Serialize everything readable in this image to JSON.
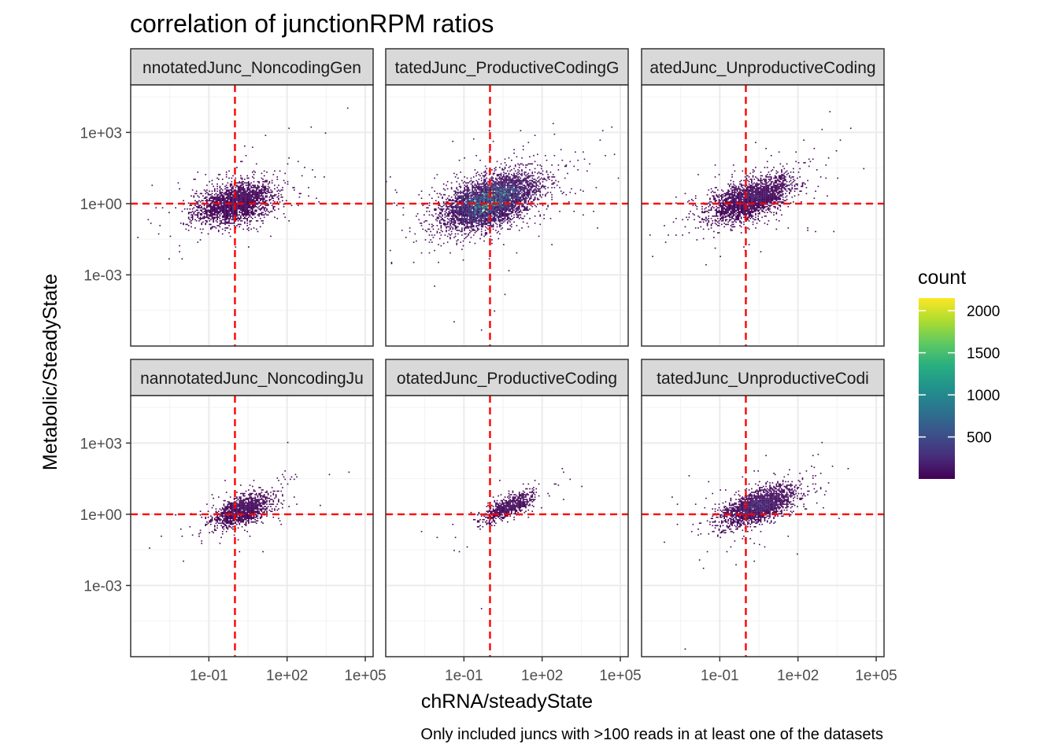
{
  "chart_data": {
    "type": "heatmap",
    "title": "correlation of junctionRPM ratios",
    "xlabel": "chRNA/steadyState",
    "ylabel": "Metabolic/SteadyState",
    "caption": "Only included juncs with >100 reads in at least one of the datasets",
    "x_scale": "log10",
    "y_scale": "log10",
    "xlim": [
      0.0001,
      200000.0
    ],
    "ylim": [
      1e-06,
      100000.0
    ],
    "x_ticks": [
      {
        "value": 0.1,
        "label": "1e-01"
      },
      {
        "value": 100,
        "label": "1e+02"
      },
      {
        "value": 100000,
        "label": "1e+05"
      }
    ],
    "y_ticks": [
      {
        "value": 0.001,
        "label": "1e-03"
      },
      {
        "value": 1,
        "label": "1e+00"
      },
      {
        "value": 1000,
        "label": "1e+03"
      }
    ],
    "reference_lines": {
      "x": 1,
      "y": 1,
      "color": "#ff0000",
      "style": "dashed"
    },
    "legend": {
      "title": "count",
      "position": "right",
      "colormap": "viridis",
      "range": [
        1,
        2150
      ],
      "ticks": [
        {
          "value": 500,
          "label": "500"
        },
        {
          "value": 1000,
          "label": "1000"
        },
        {
          "value": 1500,
          "label": "1500"
        },
        {
          "value": 2000,
          "label": "2000"
        }
      ]
    },
    "grid": true,
    "panels": [
      {
        "strip": "nnotatedJunc_NoncodingGen",
        "row": 0,
        "col": 0,
        "center": [
          1,
          1
        ],
        "spread": [
          0.7,
          0.42
        ],
        "rho": 0.35,
        "n": 2600,
        "peak_count": 430,
        "seed": 11,
        "outliers": [
          [
            20000,
            11000
          ],
          [
            200000,
            9000
          ],
          [
            800,
            1600
          ],
          [
            3000,
            900
          ],
          [
            0.02,
            0.1
          ],
          [
            0.003,
            0.005
          ]
        ]
      },
      {
        "strip": "tatedJunc_ProductiveCodingG",
        "row": 0,
        "col": 1,
        "center": [
          1,
          1.2
        ],
        "spread": [
          0.85,
          0.55
        ],
        "rho": 0.5,
        "n": 5600,
        "peak_count": 2150,
        "seed": 23,
        "outliers": [
          [
            50000,
            1600
          ],
          [
            0.04,
            1e-05
          ],
          [
            0.5,
            5e-06
          ],
          [
            1.5,
            3e-05
          ],
          [
            0.0002,
            1
          ],
          [
            30,
            50
          ]
        ]
      },
      {
        "strip": "atedJunc_UnproductiveCoding",
        "row": 0,
        "col": 2,
        "center": [
          1.5,
          1.5
        ],
        "spread": [
          0.75,
          0.45
        ],
        "rho": 0.55,
        "n": 2900,
        "peak_count": 620,
        "seed": 37,
        "outliers": [
          [
            10000,
            1500
          ],
          [
            4000,
            500
          ],
          [
            0.005,
            0.1
          ],
          [
            1,
            0.0001
          ],
          [
            0.02,
            0.5
          ]
        ]
      },
      {
        "strip": "nannotatedJunc_NoncodingJu",
        "row": 1,
        "col": 0,
        "center": [
          2,
          1.5
        ],
        "spread": [
          0.55,
          0.35
        ],
        "rho": 0.6,
        "n": 1500,
        "peak_count": 320,
        "seed": 53,
        "outliers": [
          [
            100,
            1000
          ],
          [
            200,
            50
          ],
          [
            0.02,
            1
          ],
          [
            0.01,
            0.01
          ],
          [
            1,
            0.01
          ]
        ]
      },
      {
        "strip": "otatedJunc_ProductiveCoding",
        "row": 1,
        "col": 1,
        "center": [
          5,
          2
        ],
        "spread": [
          0.45,
          0.28
        ],
        "rho": 0.7,
        "n": 900,
        "peak_count": 260,
        "seed": 71,
        "outliers": [
          [
            600,
            80
          ],
          [
            0.04,
            0.03
          ],
          [
            0.5,
            0.0001
          ]
        ]
      },
      {
        "strip": "tatedJunc_UnproductiveCodi",
        "row": 1,
        "col": 2,
        "center": [
          3,
          2.2
        ],
        "spread": [
          0.65,
          0.38
        ],
        "rho": 0.6,
        "n": 2600,
        "peak_count": 600,
        "seed": 89,
        "outliers": [
          [
            800,
            1000
          ],
          [
            2000,
            100
          ],
          [
            0.005,
            2e-06
          ],
          [
            0.02,
            1
          ],
          [
            2,
            0.01
          ]
        ]
      }
    ]
  }
}
